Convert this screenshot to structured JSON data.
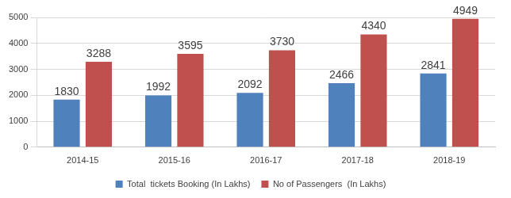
{
  "chart_data": {
    "type": "bar",
    "categories": [
      "2014-15",
      "2015-16",
      "2016-17",
      "2017-18",
      "2018-19"
    ],
    "series": [
      {
        "name": "Total  tickets Booking (In Lakhs)",
        "color": "#4f81bd",
        "values": [
          1830,
          1992,
          2092,
          2466,
          2841
        ]
      },
      {
        "name": "No of Passengers  (In Lakhs)",
        "color": "#c0504d",
        "values": [
          3288,
          3595,
          3730,
          4340,
          4949
        ]
      }
    ],
    "ylim": [
      0,
      5000
    ],
    "yticks": [
      0,
      1000,
      2000,
      3000,
      4000,
      5000
    ],
    "grid": true,
    "legend": "bottom",
    "data_labels": true
  }
}
